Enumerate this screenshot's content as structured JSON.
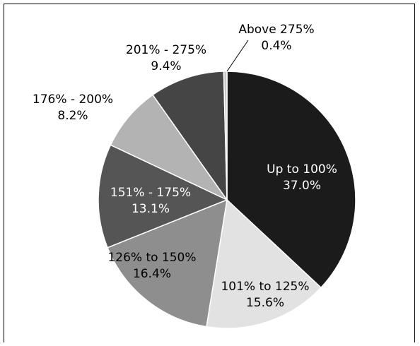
{
  "chart_data": {
    "type": "pie",
    "title": "",
    "start_angle_deg": 0,
    "direction": "clockwise",
    "slices": [
      {
        "label": "Up to 100%",
        "value_label": "37.0%",
        "value": 37.0,
        "color": "#1b1b1b",
        "text_color": "#ffffff"
      },
      {
        "label": "101% to 125%",
        "value_label": "15.6%",
        "value": 15.6,
        "color": "#e2e2e2",
        "text_color": "#000000"
      },
      {
        "label": "126% to 150%",
        "value_label": "16.4%",
        "value": 16.4,
        "color": "#8e8e8e",
        "text_color": "#000000"
      },
      {
        "label": "151% - 175%",
        "value_label": "13.1%",
        "value": 13.1,
        "color": "#555555",
        "text_color": "#ffffff"
      },
      {
        "label": "176% - 200%",
        "value_label": "8.2%",
        "value": 8.2,
        "color": "#b3b3b3",
        "text_color": "#000000"
      },
      {
        "label": "201% - 275%",
        "value_label": "9.4%",
        "value": 9.4,
        "color": "#454545",
        "text_color": "#000000"
      },
      {
        "label": "Above 275%",
        "value_label": "0.4%",
        "value": 0.4,
        "color": "#c8c8c8",
        "text_color": "#000000"
      }
    ]
  }
}
